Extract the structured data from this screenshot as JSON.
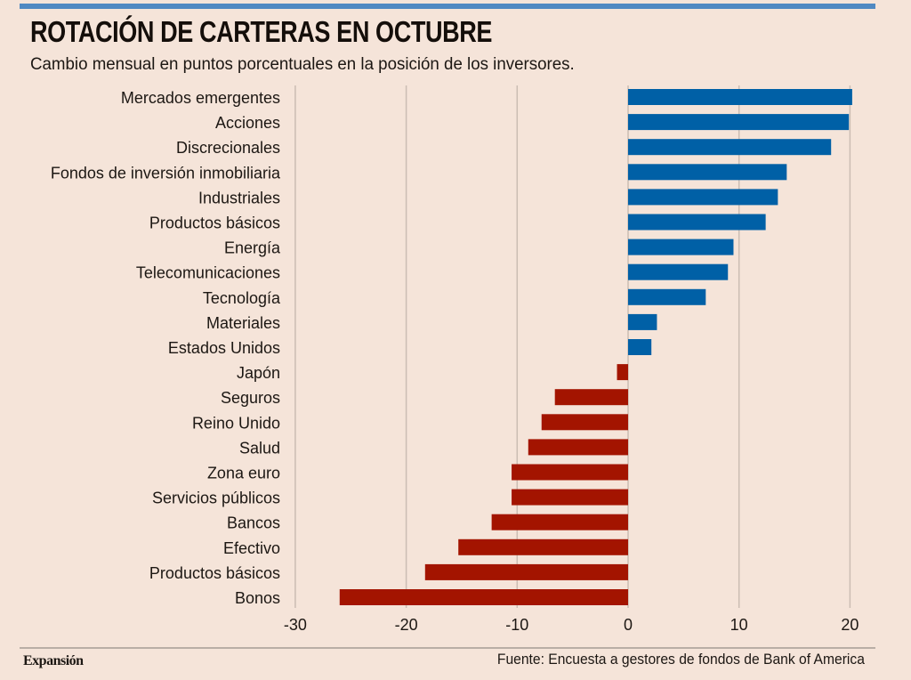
{
  "header": {
    "title": "ROTACIÓN DE CARTERAS EN OCTUBRE",
    "subtitle": "Cambio mensual en puntos porcentuales en la posición de los inversores."
  },
  "footer": {
    "brand": "Expansión",
    "source": "Fuente:  Encuesta a gestores de fondos de Bank of America"
  },
  "colors": {
    "positive": "#0060a6",
    "negative": "#a31400",
    "accent_bar": "#5089c2",
    "gridline": "#cbbdb3"
  },
  "chart_data": {
    "type": "bar",
    "orientation": "horizontal",
    "title": "ROTACIÓN DE CARTERAS EN OCTUBRE",
    "subtitle": "Cambio mensual en puntos porcentuales en la posición de los inversores.",
    "xlabel": "",
    "ylabel": "",
    "xlim": [
      -30,
      22
    ],
    "xticks": [
      -30,
      -20,
      -10,
      0,
      10,
      20
    ],
    "xtick_labels": [
      "-30",
      "-20",
      "-10",
      "0",
      "10",
      "20"
    ],
    "grid": true,
    "categories": [
      "Mercados emergentes",
      "Acciones",
      "Discrecionales",
      "Fondos de inversión inmobiliaria",
      "Industriales",
      "Productos básicos",
      "Energía",
      "Telecomunicaciones",
      "Tecnología",
      "Materiales",
      "Estados Unidos",
      "Japón",
      "Seguros",
      "Reino Unido",
      "Salud",
      "Zona euro",
      "Servicios públicos",
      "Bancos",
      "Efectivo",
      "Productos básicos",
      "Bonos"
    ],
    "values": [
      20.2,
      19.9,
      18.3,
      14.3,
      13.5,
      12.4,
      9.5,
      9.0,
      7.0,
      2.6,
      2.1,
      -1.0,
      -6.6,
      -7.8,
      -9.0,
      -10.5,
      -10.5,
      -12.3,
      -15.3,
      -18.3,
      -26.0
    ],
    "source": "Fuente:  Encuesta a gestores de fondos de Bank of America"
  }
}
